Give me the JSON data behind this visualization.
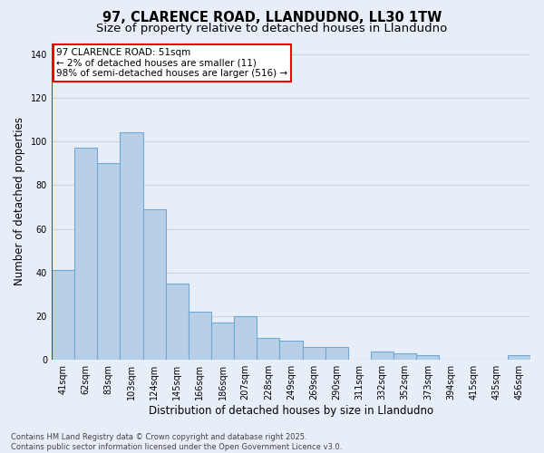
{
  "title": "97, CLARENCE ROAD, LLANDUDNO, LL30 1TW",
  "subtitle": "Size of property relative to detached houses in Llandudno",
  "xlabel": "Distribution of detached houses by size in Llandudno",
  "ylabel": "Number of detached properties",
  "categories": [
    "41sqm",
    "62sqm",
    "83sqm",
    "103sqm",
    "124sqm",
    "145sqm",
    "166sqm",
    "186sqm",
    "207sqm",
    "228sqm",
    "249sqm",
    "269sqm",
    "290sqm",
    "311sqm",
    "332sqm",
    "352sqm",
    "373sqm",
    "394sqm",
    "415sqm",
    "435sqm",
    "456sqm"
  ],
  "values": [
    41,
    97,
    90,
    104,
    69,
    35,
    22,
    17,
    20,
    10,
    9,
    6,
    6,
    0,
    4,
    3,
    2,
    0,
    0,
    0,
    2
  ],
  "bar_color": "#b8cfe8",
  "bar_edge_color": "#6faad4",
  "annotation_text": "97 CLARENCE ROAD: 51sqm\n← 2% of detached houses are smaller (11)\n98% of semi-detached houses are larger (516) →",
  "annotation_box_facecolor": "white",
  "annotation_box_edgecolor": "red",
  "red_line_color": "red",
  "ylim_max": 145,
  "yticks": [
    0,
    20,
    40,
    60,
    80,
    100,
    120,
    140
  ],
  "footer": "Contains HM Land Registry data © Crown copyright and database right 2025.\nContains public sector information licensed under the Open Government Licence v3.0.",
  "background_color": "#e8eef8",
  "grid_color": "#c8d4e8",
  "title_fontsize": 10.5,
  "subtitle_fontsize": 9.5,
  "axis_label_fontsize": 8.5,
  "tick_fontsize": 7,
  "annotation_fontsize": 7.5,
  "footer_fontsize": 6
}
